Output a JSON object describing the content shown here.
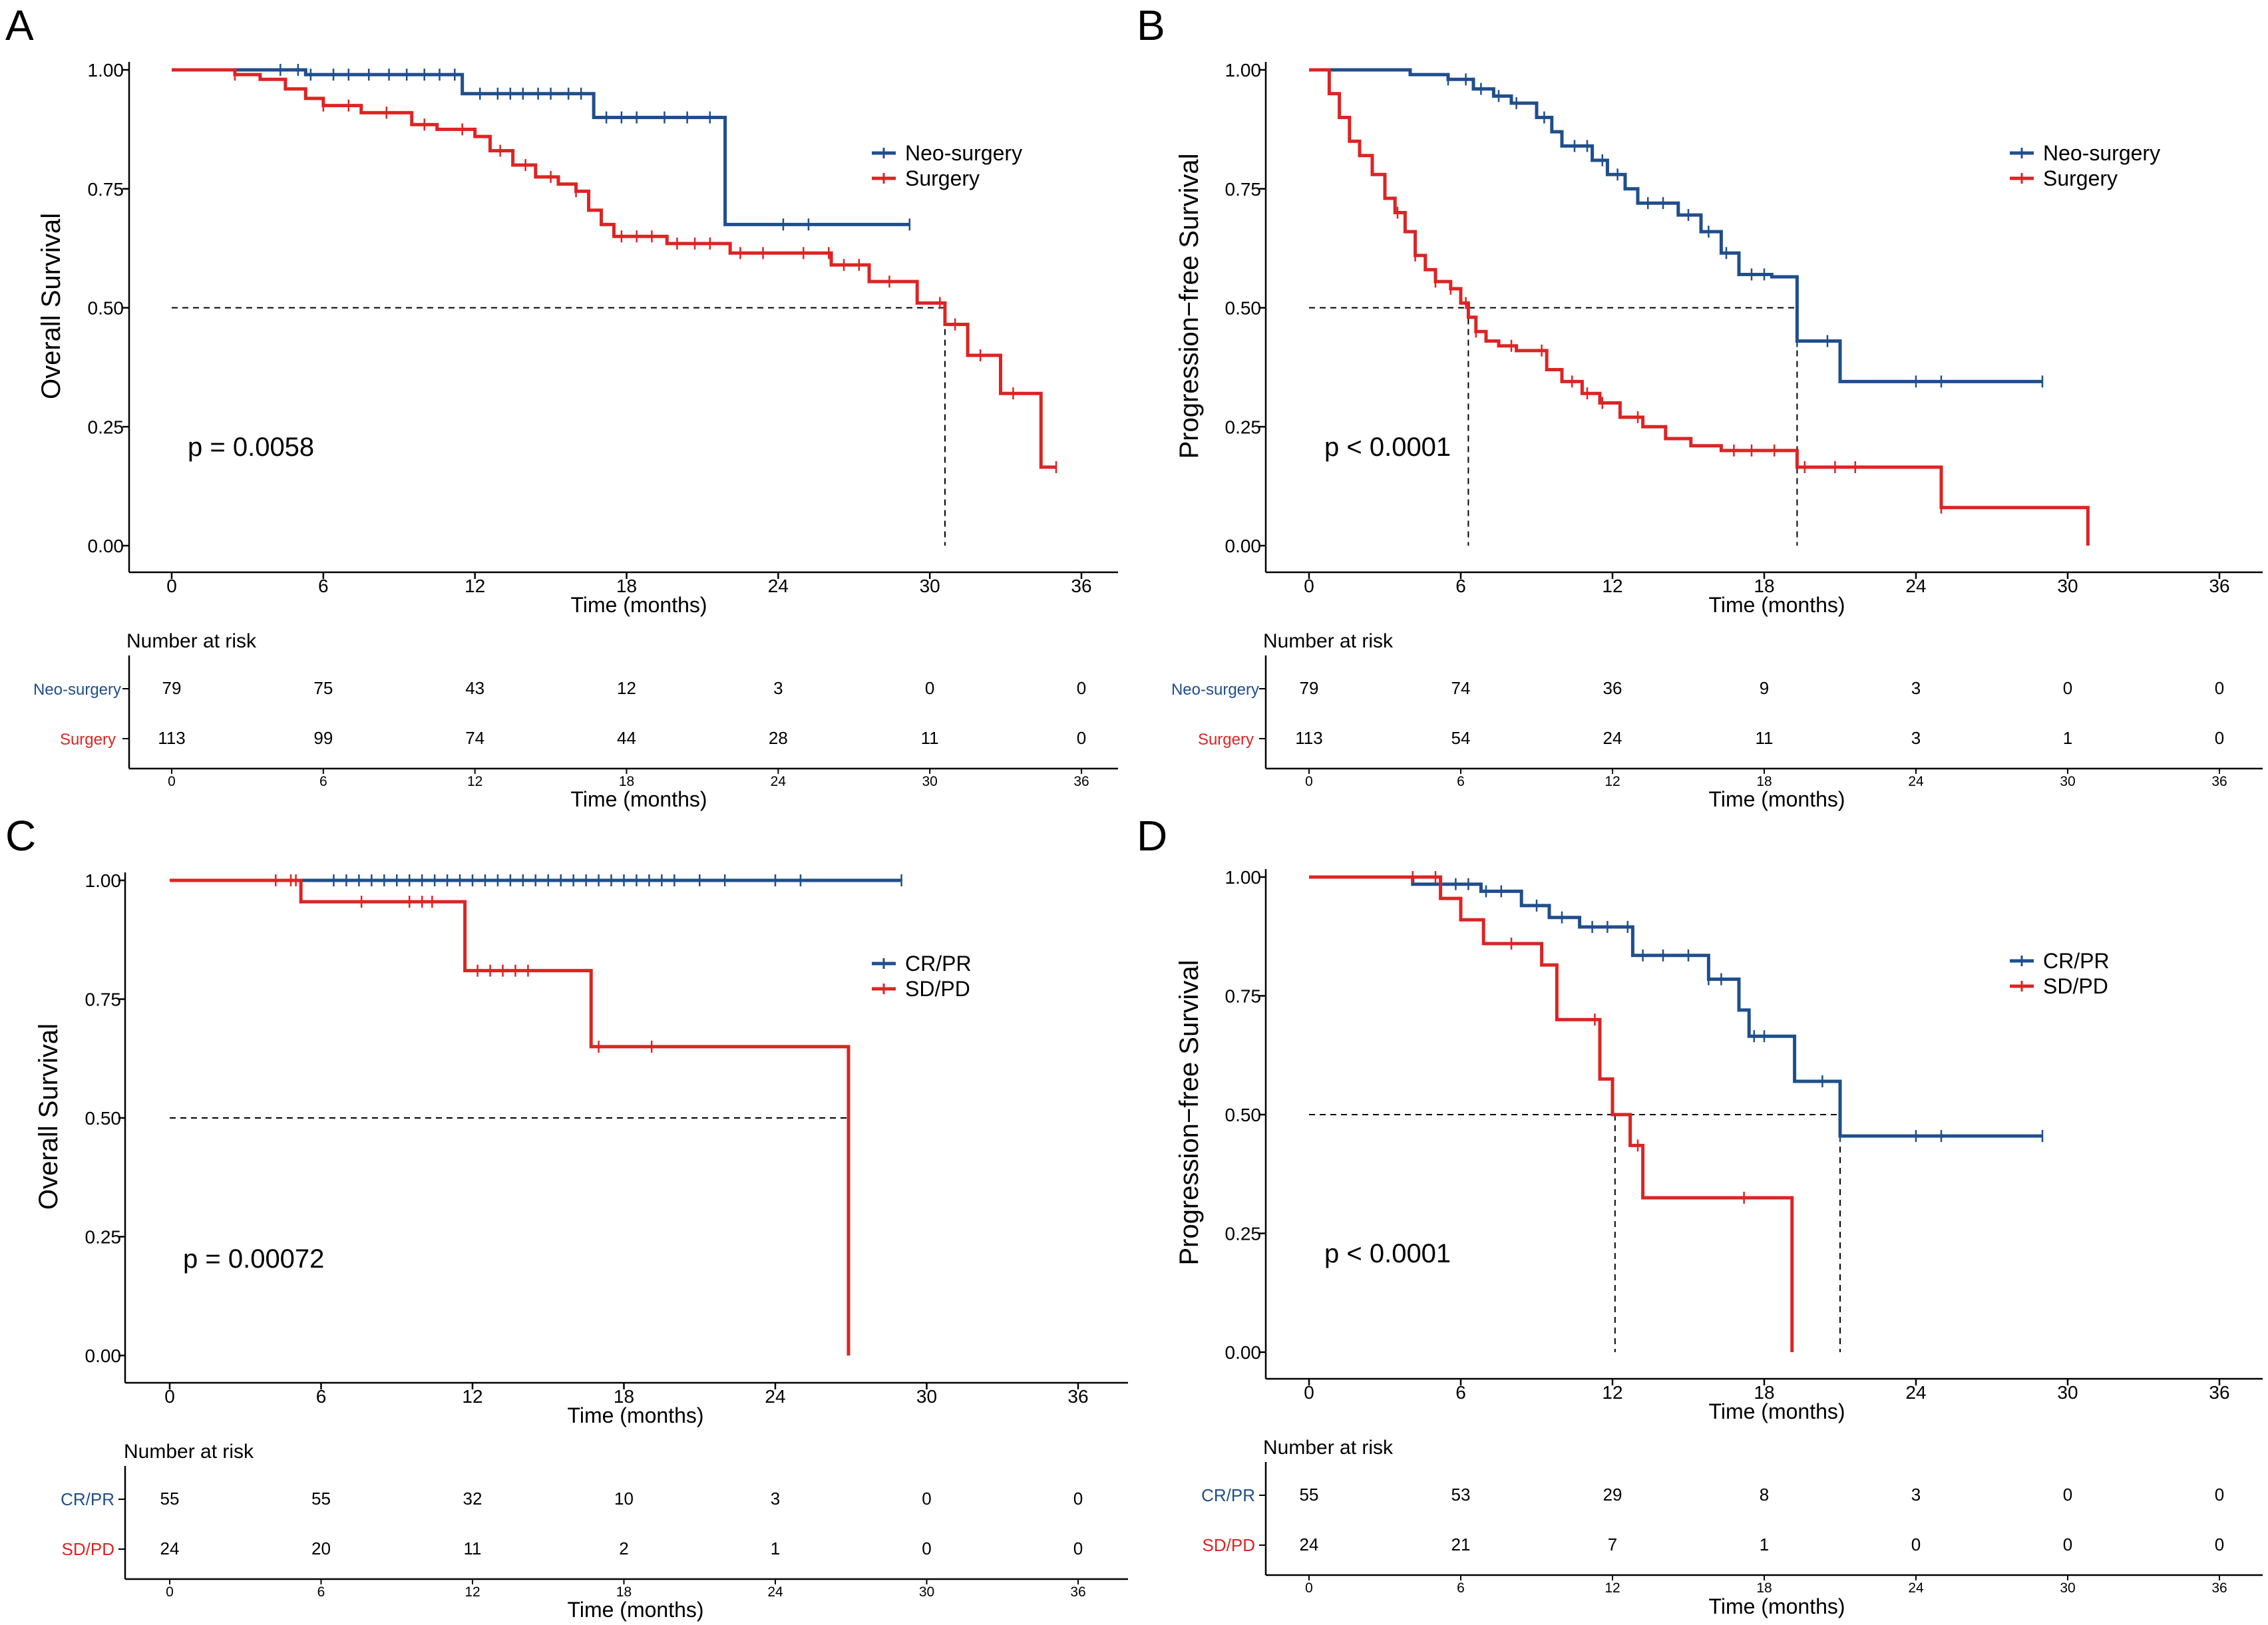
{
  "colors": {
    "neo": "#1f4e8c",
    "surgery": "#dc2424",
    "axis": "#000000",
    "median": "#000000"
  },
  "panels": [
    {
      "letter": "A",
      "ylabel": "Overall Survival",
      "pvalue": "p = 0.0058",
      "legend": [
        "Neo-surgery",
        "Surgery"
      ],
      "risk_title": "Number at risk",
      "risk_rows": [
        {
          "label": "Neo-surgery",
          "values": [
            "79",
            "75",
            "43",
            "12",
            "3",
            "0",
            "0"
          ]
        },
        {
          "label": "Surgery",
          "values": [
            "113",
            "99",
            "74",
            "44",
            "28",
            "11",
            "0"
          ]
        }
      ]
    },
    {
      "letter": "B",
      "ylabel": "Progression−free Survival",
      "pvalue": "p < 0.0001",
      "legend": [
        "Neo-surgery",
        "Surgery"
      ],
      "risk_title": "Number at risk",
      "risk_rows": [
        {
          "label": "Neo-surgery",
          "values": [
            "79",
            "74",
            "36",
            "9",
            "3",
            "0",
            "0"
          ]
        },
        {
          "label": "Surgery",
          "values": [
            "113",
            "54",
            "24",
            "11",
            "3",
            "1",
            "0"
          ]
        }
      ]
    },
    {
      "letter": "C",
      "ylabel": "Overall Survival",
      "pvalue": "p = 0.00072",
      "legend": [
        "CR/PR",
        "SD/PD"
      ],
      "risk_title": "Number at risk",
      "risk_rows": [
        {
          "label": "CR/PR",
          "values": [
            "55",
            "55",
            "32",
            "10",
            "3",
            "0",
            "0"
          ]
        },
        {
          "label": "SD/PD",
          "values": [
            "24",
            "20",
            "11",
            "2",
            "1",
            "0",
            "0"
          ]
        }
      ]
    },
    {
      "letter": "D",
      "ylabel": "Progression−free Survival",
      "pvalue": "p < 0.0001",
      "legend": [
        "CR/PR",
        "SD/PD"
      ],
      "risk_title": "Number at risk",
      "risk_rows": [
        {
          "label": "CR/PR",
          "values": [
            "55",
            "53",
            "29",
            "8",
            "3",
            "0",
            "0"
          ]
        },
        {
          "label": "SD/PD",
          "values": [
            "24",
            "21",
            "7",
            "1",
            "0",
            "0",
            "0"
          ]
        }
      ]
    }
  ],
  "chart_data": [
    {
      "type": "line",
      "panel": "A",
      "title": "",
      "xlabel": "Time (months)",
      "ylabel": "Overall Survival",
      "xlim": [
        0,
        36
      ],
      "ylim": [
        0,
        1
      ],
      "xticks": [
        "0",
        "6",
        "12",
        "18",
        "24",
        "30",
        "36"
      ],
      "yticks": [
        "0.00",
        "0.25",
        "0.50",
        "0.75",
        "1.00"
      ],
      "median_line": {
        "y": 0.5,
        "x_end": [
          30.6
        ]
      },
      "series": [
        {
          "name": "Neo-surgery",
          "x": [
            0,
            5.3,
            11.5,
            16.7,
            21.9,
            29.2
          ],
          "y": [
            1.0,
            0.99,
            0.95,
            0.9,
            0.675,
            0.675
          ],
          "censor_x": [
            4.3,
            5.0,
            5.5,
            6.4,
            7.0,
            7.8,
            8.6,
            9.3,
            10.0,
            10.6,
            11.2,
            12.2,
            12.9,
            13.4,
            13.9,
            14.5,
            15.0,
            15.7,
            16.2,
            17.2,
            17.8,
            18.4,
            19.5,
            20.4,
            21.3,
            24.2,
            25.2,
            29.2
          ]
        },
        {
          "name": "Surgery",
          "x": [
            0,
            2.5,
            3.5,
            4.5,
            5.3,
            6.0,
            7.5,
            9.5,
            10.5,
            12.0,
            12.6,
            13.5,
            14.4,
            15.3,
            16.0,
            16.5,
            17.0,
            17.5,
            19.6,
            22.1,
            26.1,
            27.6,
            29.5,
            30.6,
            31.5,
            32.8,
            34.4,
            35.0
          ],
          "y": [
            1.0,
            0.99,
            0.98,
            0.96,
            0.94,
            0.925,
            0.91,
            0.885,
            0.875,
            0.86,
            0.83,
            0.8,
            0.775,
            0.76,
            0.745,
            0.705,
            0.675,
            0.65,
            0.635,
            0.615,
            0.59,
            0.555,
            0.51,
            0.465,
            0.4,
            0.32,
            0.165,
            0.165
          ],
          "censor_x": [
            2.5,
            6.0,
            7.0,
            8.5,
            10.0,
            11.5,
            13.0,
            14.0,
            15.0,
            16.0,
            17.8,
            18.4,
            19.0,
            20.0,
            20.7,
            21.3,
            22.5,
            23.4,
            25.0,
            26.0,
            26.6,
            27.2,
            28.4,
            30.4,
            31.0,
            32.0,
            33.3,
            35.0
          ]
        }
      ]
    },
    {
      "type": "line",
      "panel": "B",
      "title": "",
      "xlabel": "Time (months)",
      "ylabel": "Progression−free Survival",
      "xlim": [
        0,
        36
      ],
      "ylim": [
        0,
        1
      ],
      "xticks": [
        "0",
        "6",
        "12",
        "18",
        "24",
        "30",
        "36"
      ],
      "yticks": [
        "0.00",
        "0.25",
        "0.50",
        "0.75",
        "1.00"
      ],
      "median_line": {
        "y": 0.5,
        "x_end": [
          6.3,
          19.3
        ]
      },
      "series": [
        {
          "name": "Neo-surgery",
          "x": [
            0,
            4.0,
            5.5,
            6.5,
            7.3,
            8.0,
            9.0,
            9.6,
            10.0,
            11.2,
            11.8,
            12.5,
            13.0,
            14.6,
            15.5,
            16.3,
            17.0,
            18.3,
            19.3,
            21.0,
            29.0
          ],
          "y": [
            1.0,
            0.99,
            0.98,
            0.96,
            0.945,
            0.93,
            0.9,
            0.87,
            0.84,
            0.81,
            0.78,
            0.75,
            0.72,
            0.695,
            0.66,
            0.615,
            0.57,
            0.565,
            0.43,
            0.345,
            0.345
          ],
          "censor_x": [
            5.5,
            6.2,
            6.8,
            7.5,
            8.2,
            9.3,
            10.5,
            11.0,
            11.6,
            12.2,
            13.4,
            14.0,
            15.0,
            15.8,
            16.5,
            17.5,
            18.0,
            19.3,
            20.5,
            24.0,
            25.0,
            29.0
          ]
        },
        {
          "name": "Surgery",
          "x": [
            0,
            0.8,
            1.2,
            1.6,
            2.0,
            2.5,
            3.0,
            3.4,
            3.8,
            4.2,
            4.6,
            5.0,
            5.6,
            6.0,
            6.3,
            6.6,
            7.0,
            7.5,
            8.2,
            9.4,
            10.0,
            10.8,
            11.5,
            12.3,
            13.2,
            14.1,
            15.1,
            16.3,
            19.3,
            25.0,
            30.8
          ],
          "y": [
            1.0,
            0.95,
            0.9,
            0.85,
            0.82,
            0.78,
            0.73,
            0.7,
            0.66,
            0.61,
            0.58,
            0.555,
            0.54,
            0.51,
            0.48,
            0.45,
            0.43,
            0.42,
            0.41,
            0.37,
            0.345,
            0.32,
            0.3,
            0.27,
            0.25,
            0.225,
            0.21,
            0.2,
            0.165,
            0.08,
            0.0
          ],
          "censor_x": [
            3.5,
            4.2,
            5.0,
            5.6,
            6.2,
            6.6,
            8.0,
            9.2,
            10.4,
            11.0,
            11.6,
            13.0,
            16.8,
            17.5,
            18.4,
            19.6,
            20.8,
            21.6,
            25.0
          ]
        }
      ]
    },
    {
      "type": "line",
      "panel": "C",
      "title": "",
      "xlabel": "Time (months)",
      "ylabel": "Overall Survival",
      "xlim": [
        0,
        36
      ],
      "ylim": [
        0,
        1
      ],
      "xticks": [
        "0",
        "6",
        "12",
        "18",
        "24",
        "30",
        "36"
      ],
      "yticks": [
        "0.00",
        "0.25",
        "0.50",
        "0.75",
        "1.00"
      ],
      "median_line": {
        "y": 0.5,
        "x_end": [
          26.9
        ]
      },
      "series": [
        {
          "name": "CR/PR",
          "x": [
            0,
            29.0
          ],
          "y": [
            1.0,
            1.0
          ],
          "censor_x": [
            6.5,
            7.0,
            7.5,
            8.0,
            8.5,
            9.0,
            9.5,
            10.0,
            10.5,
            11.0,
            11.5,
            12.0,
            12.5,
            13.0,
            13.5,
            14.0,
            14.5,
            15.0,
            15.5,
            16.0,
            16.5,
            17.0,
            17.5,
            18.0,
            18.5,
            19.0,
            19.5,
            20.0,
            21.0,
            22.0,
            24.0,
            25.0,
            29.0
          ]
        },
        {
          "name": "SD/PD",
          "x": [
            0,
            5.2,
            11.4,
            11.7,
            16.7,
            26.9,
            26.9
          ],
          "y": [
            1.0,
            0.955,
            0.955,
            0.81,
            0.65,
            0.65,
            0.0
          ],
          "censor_x": [
            4.2,
            4.8,
            5.0,
            7.6,
            9.5,
            10.0,
            10.4,
            12.2,
            12.7,
            13.2,
            13.7,
            14.2,
            17.0,
            19.1
          ]
        }
      ]
    },
    {
      "type": "line",
      "panel": "D",
      "title": "",
      "xlabel": "Time (months)",
      "ylabel": "Progression−free Survival",
      "xlim": [
        0,
        36
      ],
      "ylim": [
        0,
        1
      ],
      "xticks": [
        "0",
        "6",
        "12",
        "18",
        "24",
        "30",
        "36"
      ],
      "yticks": [
        "0.00",
        "0.25",
        "0.50",
        "0.75",
        "1.00"
      ],
      "median_line": {
        "y": 0.5,
        "x_end": [
          12.1,
          21.0
        ]
      },
      "series": [
        {
          "name": "CR/PR",
          "x": [
            0,
            4.1,
            6.8,
            8.4,
            9.5,
            10.7,
            12.8,
            15.8,
            17.0,
            17.4,
            19.2,
            21.0,
            29.0
          ],
          "y": [
            1.0,
            0.985,
            0.97,
            0.94,
            0.915,
            0.895,
            0.835,
            0.785,
            0.72,
            0.665,
            0.57,
            0.455,
            0.455
          ],
          "censor_x": [
            5.2,
            5.8,
            6.3,
            7.0,
            7.6,
            9.0,
            10.0,
            11.2,
            11.8,
            12.6,
            13.2,
            14.0,
            15.0,
            15.8,
            16.3,
            17.6,
            18.0,
            20.3,
            21.0,
            24.0,
            25.0,
            29.0
          ]
        },
        {
          "name": "SD/PD",
          "x": [
            0,
            5.2,
            6.0,
            6.9,
            9.2,
            9.8,
            11.5,
            12.0,
            12.7,
            13.2,
            19.1,
            19.1
          ],
          "y": [
            1.0,
            0.955,
            0.91,
            0.86,
            0.815,
            0.7,
            0.575,
            0.5,
            0.435,
            0.325,
            0.325,
            0.0
          ],
          "censor_x": [
            4.1,
            5.0,
            8.0,
            11.3,
            13.0,
            17.2
          ]
        }
      ]
    }
  ]
}
